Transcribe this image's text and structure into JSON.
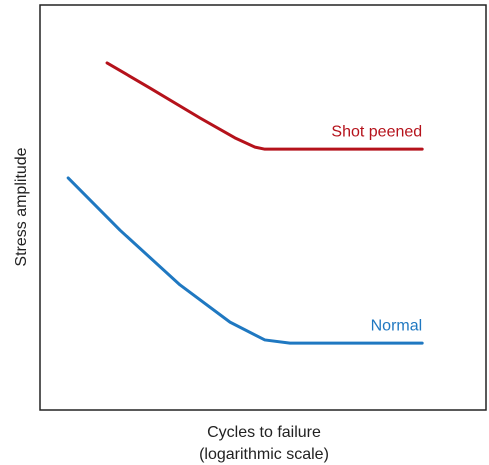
{
  "chart_data": {
    "type": "line",
    "x_label": [
      "Cycles to failure",
      "(logarithmic scale)"
    ],
    "y_label": "Stress amplitude",
    "xlim": [
      0,
      100
    ],
    "ylim": [
      0,
      100
    ],
    "series": [
      {
        "name": "Shot peened",
        "color": "#b5121b",
        "x": [
          15.0,
          24.6,
          35.8,
          43.6,
          48.1,
          50.3,
          85.5
        ],
        "values": [
          85.7,
          79.5,
          72.1,
          67.2,
          64.9,
          64.4,
          64.4
        ]
      },
      {
        "name": "Normal",
        "color": "#1f78c1",
        "x": [
          6.3,
          17.9,
          31.3,
          42.5,
          50.3,
          55.9,
          85.5
        ],
        "values": [
          57.3,
          44.4,
          30.9,
          21.7,
          17.3,
          16.5,
          16.5
        ]
      }
    ]
  }
}
